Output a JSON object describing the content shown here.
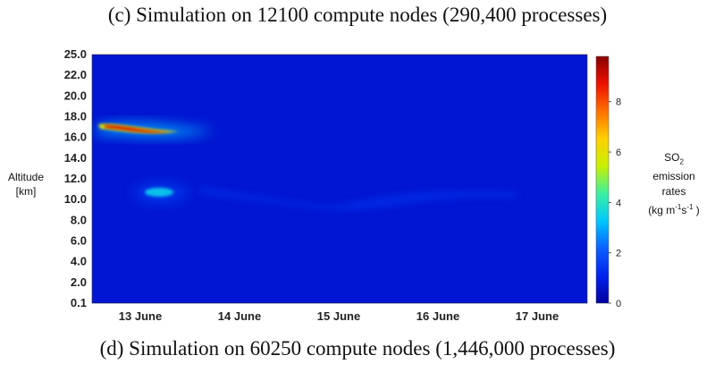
{
  "captions": {
    "top": "(c) Simulation on 12100 compute nodes (290,400 processes)",
    "bottom": "(d) Simulation on 60250 compute nodes (1,446,000 processes)"
  },
  "chart_data": {
    "type": "heatmap",
    "title": "",
    "xlabel": "",
    "ylabel": "Altitude [km]",
    "ylabel_lines": [
      "Altitude",
      "[km]"
    ],
    "x_ticks": [
      "13 June",
      "14 June",
      "15 June",
      "16 June",
      "17 June"
    ],
    "y_ticks": [
      "0.1",
      "2.0",
      "4.0",
      "6.0",
      "8.0",
      "10.0",
      "12.0",
      "14.0",
      "16.0",
      "18.0",
      "20.0",
      "22.0",
      "25.0"
    ],
    "colorbar": {
      "label_lines": [
        "SO2",
        "emission",
        "rates",
        "(kg m-1s-1 )"
      ],
      "ticks": [
        "0",
        "2",
        "4",
        "6",
        "8"
      ],
      "range": [
        0,
        9.8
      ],
      "colormap": [
        "#0000a0",
        "#0022ee",
        "#0a60ff",
        "#00c8ff",
        "#3cf0a0",
        "#c8f000",
        "#ffd000",
        "#ff7000",
        "#ee1000",
        "#8a0000"
      ]
    },
    "background_value": 0.7,
    "features": [
      {
        "name": "core plume",
        "date": "13 June",
        "altitude_km": 16.5,
        "value": 9.0
      },
      {
        "name": "secondary plume",
        "date": "13 June",
        "altitude_km": 10.8,
        "value": 3.5
      },
      {
        "name": "diffuse layer",
        "date": "15-16 June",
        "altitude_km": 10.0,
        "value": 1.5
      }
    ]
  }
}
